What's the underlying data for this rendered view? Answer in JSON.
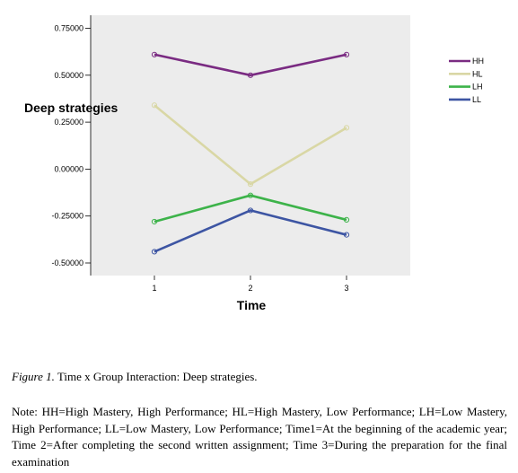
{
  "chart_data": {
    "type": "line",
    "x": [
      1,
      2,
      3
    ],
    "xlabel": "Time",
    "ylabel": "Deep strategies",
    "ylim": [
      -0.55,
      0.8
    ],
    "yticks": [
      -0.5,
      -0.25,
      0.0,
      0.25,
      0.5,
      0.75
    ],
    "ytick_labels": [
      "-0.50000",
      "-0.25000",
      "0.00000",
      "0.25000",
      "0.50000",
      "0.75000"
    ],
    "xtick_labels": [
      "1",
      "2",
      "3"
    ],
    "grid": false,
    "plot_background": "#ececec",
    "legend_position": "right",
    "series": [
      {
        "name": "HH",
        "color": "#7a2b82",
        "values": [
          0.61,
          0.5,
          0.61
        ]
      },
      {
        "name": "HL",
        "color": "#d9d7a5",
        "values": [
          0.34,
          -0.08,
          0.22
        ]
      },
      {
        "name": "LH",
        "color": "#3db34a",
        "values": [
          -0.28,
          -0.14,
          -0.27
        ]
      },
      {
        "name": "LL",
        "color": "#3d55a3",
        "values": [
          -0.44,
          -0.22,
          -0.35
        ]
      }
    ]
  },
  "caption": {
    "figure_label": "Figure 1.",
    "figure_text": " Time x Group Interaction: Deep strategies.",
    "note": "Note: HH=High Mastery, High Performance; HL=High Mastery, Low Performance; LH=Low Mastery, High Performance; LL=Low Mastery, Low Performance; Time1=At the beginning of the academic year; Time 2=After completing the second written assignment; Time 3=During the preparation for the final examination"
  }
}
